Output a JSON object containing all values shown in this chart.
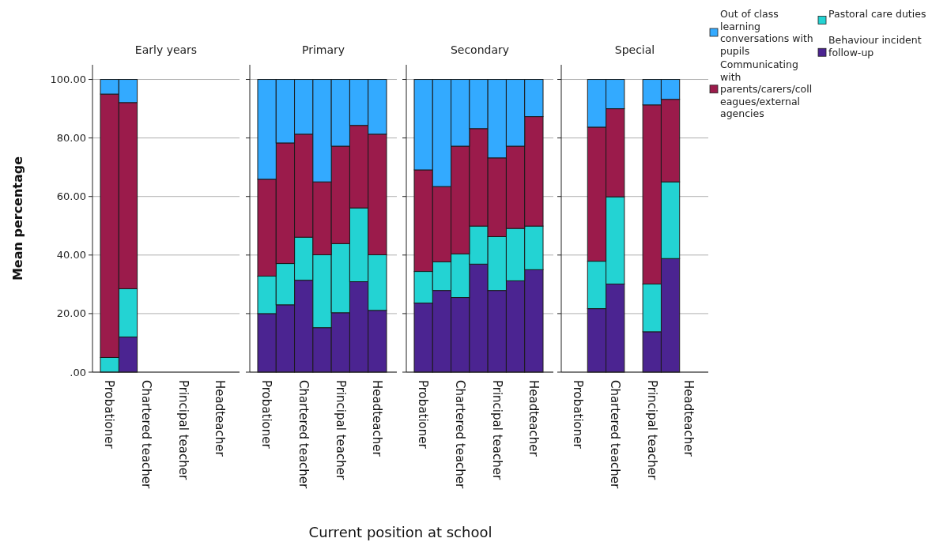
{
  "chart_data": [
    {
      "type": "bar",
      "title": "Early years",
      "ylabel": "Mean percentage",
      "xlabel": "Current position at school",
      "stacked": true,
      "grid": "y",
      "categories": [
        "Probationer",
        null,
        "Chartered teacher",
        null,
        "Principal teacher",
        null,
        "Headteacher"
      ],
      "ylim": [
        0,
        105
      ],
      "yticks": [
        {
          "value": 0,
          "label": ".00"
        },
        {
          "value": 20,
          "label": "20.00"
        },
        {
          "value": 40,
          "label": "40.00"
        },
        {
          "value": 60,
          "label": "60.00"
        },
        {
          "value": 80,
          "label": "80.00"
        },
        {
          "value": 100,
          "label": "100.00"
        }
      ],
      "series": [
        {
          "color": "#4b2491",
          "values": [
            0,
            12,
            null,
            null,
            null,
            null,
            null
          ]
        },
        {
          "color": "#23d3d3",
          "values": [
            5,
            16.5,
            null,
            null,
            null,
            null,
            null
          ]
        },
        {
          "color": "#9b1b4b",
          "values": [
            90,
            63.6,
            null,
            null,
            null,
            null,
            null
          ]
        },
        {
          "color": "#33aaff",
          "values": [
            5,
            7.9,
            null,
            null,
            null,
            null,
            null
          ]
        }
      ]
    },
    {
      "type": "bar",
      "title": "Primary",
      "stacked": true,
      "grid": "y",
      "tick_labels": "x",
      "categories": [
        "Probationer",
        null,
        "Chartered teacher",
        null,
        "Principal teacher",
        null,
        "Headteacher"
      ],
      "ylim": [
        0,
        105
      ],
      "yticks": [
        0,
        20,
        40,
        60,
        80,
        100
      ],
      "series": [
        {
          "color": "#4b2491",
          "values": [
            20,
            23,
            31.4,
            15.2,
            20.3,
            30.9,
            21.1
          ]
        },
        {
          "color": "#23d3d3",
          "values": [
            12.8,
            14.1,
            14.7,
            24.9,
            23.6,
            25.2,
            19
          ]
        },
        {
          "color": "#9b1b4b",
          "values": [
            33.1,
            41.2,
            35.2,
            24.9,
            33.3,
            28.2,
            41.2
          ]
        },
        {
          "color": "#33aaff",
          "values": [
            34.1,
            21.7,
            18.7,
            35,
            22.8,
            15.7,
            18.7
          ]
        }
      ]
    },
    {
      "type": "bar",
      "title": "Secondary",
      "stacked": true,
      "grid": "y",
      "tick_labels": "x",
      "categories": [
        "Probationer",
        null,
        "Chartered teacher",
        null,
        "Principal teacher",
        null,
        "Headteacher"
      ],
      "ylim": [
        0,
        105
      ],
      "yticks": [
        0,
        20,
        40,
        60,
        80,
        100
      ],
      "series": [
        {
          "color": "#4b2491",
          "values": [
            23.6,
            27.9,
            25.5,
            36.9,
            27.9,
            31.2,
            35
          ]
        },
        {
          "color": "#23d3d3",
          "values": [
            10.8,
            9.8,
            14.9,
            13,
            18.4,
            17.9,
            14.9
          ]
        },
        {
          "color": "#9b1b4b",
          "values": [
            34.7,
            25.7,
            36.8,
            33.3,
            26.9,
            28.1,
            37.4
          ]
        },
        {
          "color": "#33aaff",
          "values": [
            30.9,
            36.6,
            22.8,
            16.8,
            26.8,
            22.8,
            12.7
          ]
        }
      ]
    },
    {
      "type": "bar",
      "title": "Special",
      "stacked": true,
      "grid": "y",
      "tick_labels": "x",
      "legend": "top right",
      "categories": [
        "Probationer",
        null,
        "Chartered teacher",
        null,
        "Principal teacher",
        null,
        "Headteacher"
      ],
      "ylim": [
        0,
        105
      ],
      "yticks": [
        0,
        20,
        40,
        60,
        80,
        100
      ],
      "series": [
        {
          "name": "Behaviour incident follow-up",
          "color": "#4b2491",
          "values": [
            null,
            21.7,
            30.1,
            null,
            13.8,
            38.8,
            null
          ]
        },
        {
          "name": "Pastoral care duties",
          "color": "#23d3d3",
          "values": [
            null,
            16.2,
            29.8,
            null,
            16.3,
            26.2,
            null
          ]
        },
        {
          "name": "Communicating with parents/carers/colleagues/external agencies",
          "color": "#9b1b4b",
          "values": [
            null,
            45.8,
            30.1,
            null,
            61.2,
            28.2,
            null
          ]
        },
        {
          "name": "Out of class learning conversations with pupils",
          "color": "#33aaff",
          "values": [
            null,
            16.3,
            10,
            null,
            8.7,
            6.8,
            null
          ]
        }
      ]
    }
  ]
}
